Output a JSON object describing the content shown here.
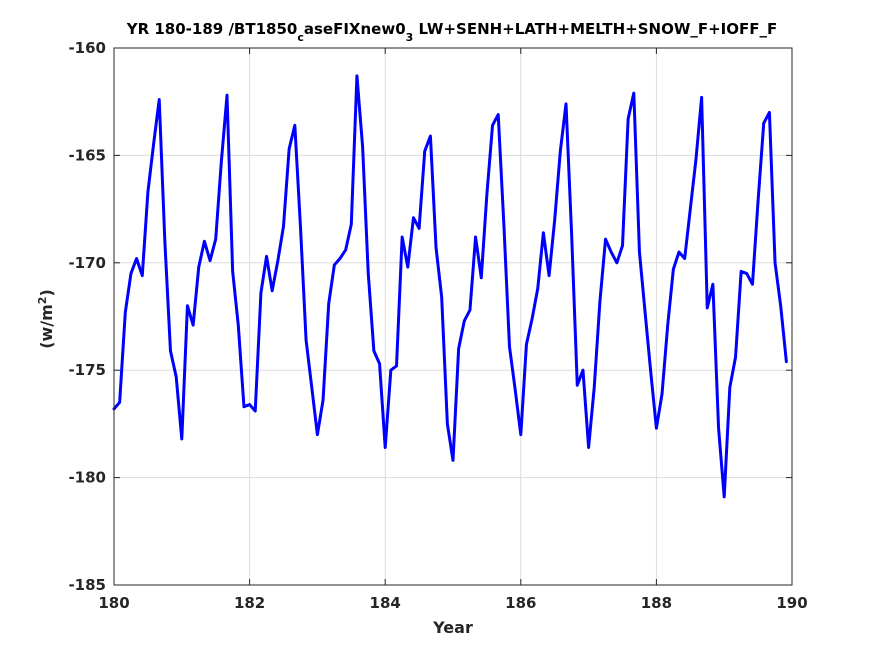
{
  "chart_data": {
    "type": "line",
    "title": {
      "part1": "YR 180-189 /BT1850",
      "sub1": "c",
      "part2": "aseFIXnew0",
      "sub2": "3",
      "part3": " LW+SENH+LATH+MELTH+SNOW_F+IOFF_F"
    },
    "xlabel": "Year",
    "ylabel": {
      "prefix": "(w/m",
      "sup": "2",
      "suffix": ")"
    },
    "xlim": [
      180,
      190
    ],
    "ylim": [
      -185,
      -160
    ],
    "xticks": [
      180,
      182,
      184,
      186,
      188,
      190
    ],
    "yticks": [
      -160,
      -165,
      -170,
      -175,
      -180,
      -185
    ],
    "grid": true,
    "line_color": "#0000ff",
    "series": [
      {
        "x": [
          180.0,
          180.083,
          180.167,
          180.25,
          180.333,
          180.417,
          180.5,
          180.583,
          180.667,
          180.75,
          180.833,
          180.917,
          181.0,
          181.083,
          181.167,
          181.25,
          181.333,
          181.417,
          181.5,
          181.583,
          181.667,
          181.75,
          181.833,
          181.917,
          182.0,
          182.083,
          182.167,
          182.25,
          182.333,
          182.417,
          182.5,
          182.583,
          182.667,
          182.75,
          182.833,
          182.917,
          183.0,
          183.083,
          183.167,
          183.25,
          183.333,
          183.417,
          183.5,
          183.583,
          183.667,
          183.75,
          183.833,
          183.917,
          184.0,
          184.083,
          184.167,
          184.25,
          184.333,
          184.417,
          184.5,
          184.583,
          184.667,
          184.75,
          184.833,
          184.917,
          185.0,
          185.083,
          185.167,
          185.25,
          185.333,
          185.417,
          185.5,
          185.583,
          185.667,
          185.75,
          185.833,
          185.917,
          186.0,
          186.083,
          186.167,
          186.25,
          186.333,
          186.417,
          186.5,
          186.583,
          186.667,
          186.75,
          186.833,
          186.917,
          187.0,
          187.083,
          187.167,
          187.25,
          187.333,
          187.417,
          187.5,
          187.583,
          187.667,
          187.75,
          187.833,
          187.917,
          188.0,
          188.083,
          188.167,
          188.25,
          188.333,
          188.417,
          188.5,
          188.583,
          188.667,
          188.75,
          188.833,
          188.917,
          189.0,
          189.083,
          189.167,
          189.25,
          189.333,
          189.417,
          189.5,
          189.583,
          189.667,
          189.75,
          189.833,
          189.917
        ],
        "y": [
          -176.8,
          -176.5,
          -172.3,
          -170.5,
          -169.8,
          -170.6,
          -166.7,
          -164.5,
          -162.4,
          -169.0,
          -174.1,
          -175.3,
          -178.2,
          -172.0,
          -172.9,
          -170.2,
          -169.0,
          -169.9,
          -168.9,
          -165.3,
          -162.2,
          -170.4,
          -172.9,
          -176.7,
          -176.6,
          -176.9,
          -171.4,
          -169.7,
          -171.3,
          -169.9,
          -168.3,
          -164.7,
          -163.6,
          -168.3,
          -173.6,
          -175.8,
          -178.0,
          -176.4,
          -171.9,
          -170.1,
          -169.8,
          -169.4,
          -168.2,
          -161.3,
          -164.6,
          -170.5,
          -174.1,
          -174.7,
          -178.6,
          -175.0,
          -174.8,
          -168.8,
          -170.2,
          -167.9,
          -168.4,
          -164.8,
          -164.1,
          -169.3,
          -171.6,
          -177.5,
          -179.2,
          -174.0,
          -172.7,
          -172.2,
          -168.8,
          -170.7,
          -166.8,
          -163.6,
          -163.1,
          -168.2,
          -173.9,
          -175.9,
          -178.0,
          -173.8,
          -172.6,
          -171.2,
          -168.6,
          -170.6,
          -168.0,
          -164.8,
          -162.6,
          -168.7,
          -175.7,
          -175.0,
          -178.6,
          -175.8,
          -171.8,
          -168.9,
          -169.5,
          -170.0,
          -169.2,
          -163.3,
          -162.1,
          -169.5,
          -172.3,
          -175.1,
          -177.7,
          -176.1,
          -172.9,
          -170.3,
          -169.5,
          -169.8,
          -167.5,
          -165.2,
          -162.3,
          -172.1,
          -171.0,
          -177.7,
          -180.9,
          -175.8,
          -174.4,
          -170.4,
          -170.5,
          -171.0,
          -167.1,
          -163.5,
          -163.0,
          -170.0,
          -172.0,
          -174.6
        ]
      }
    ]
  }
}
